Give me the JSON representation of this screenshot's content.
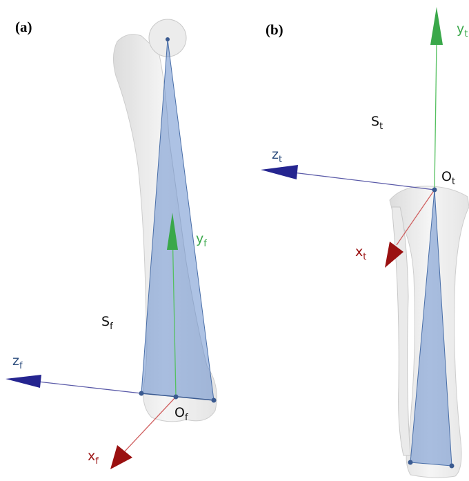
{
  "panels": [
    {
      "label": "(a)",
      "frame": {
        "main": "S",
        "sub": "f"
      },
      "origin": {
        "main": "O",
        "sub": "f"
      },
      "axes": {
        "x": {
          "main": "x",
          "sub": "f"
        },
        "y": {
          "main": "y",
          "sub": "f"
        },
        "z": {
          "main": "z",
          "sub": "f"
        }
      }
    },
    {
      "label": "(b)",
      "frame": {
        "main": "S",
        "sub": "t"
      },
      "origin": {
        "main": "O",
        "sub": "t"
      },
      "axes": {
        "x": {
          "main": "x",
          "sub": "t"
        },
        "y": {
          "main": "y",
          "sub": "t"
        },
        "z": {
          "main": "z",
          "sub": "t"
        }
      }
    }
  ]
}
